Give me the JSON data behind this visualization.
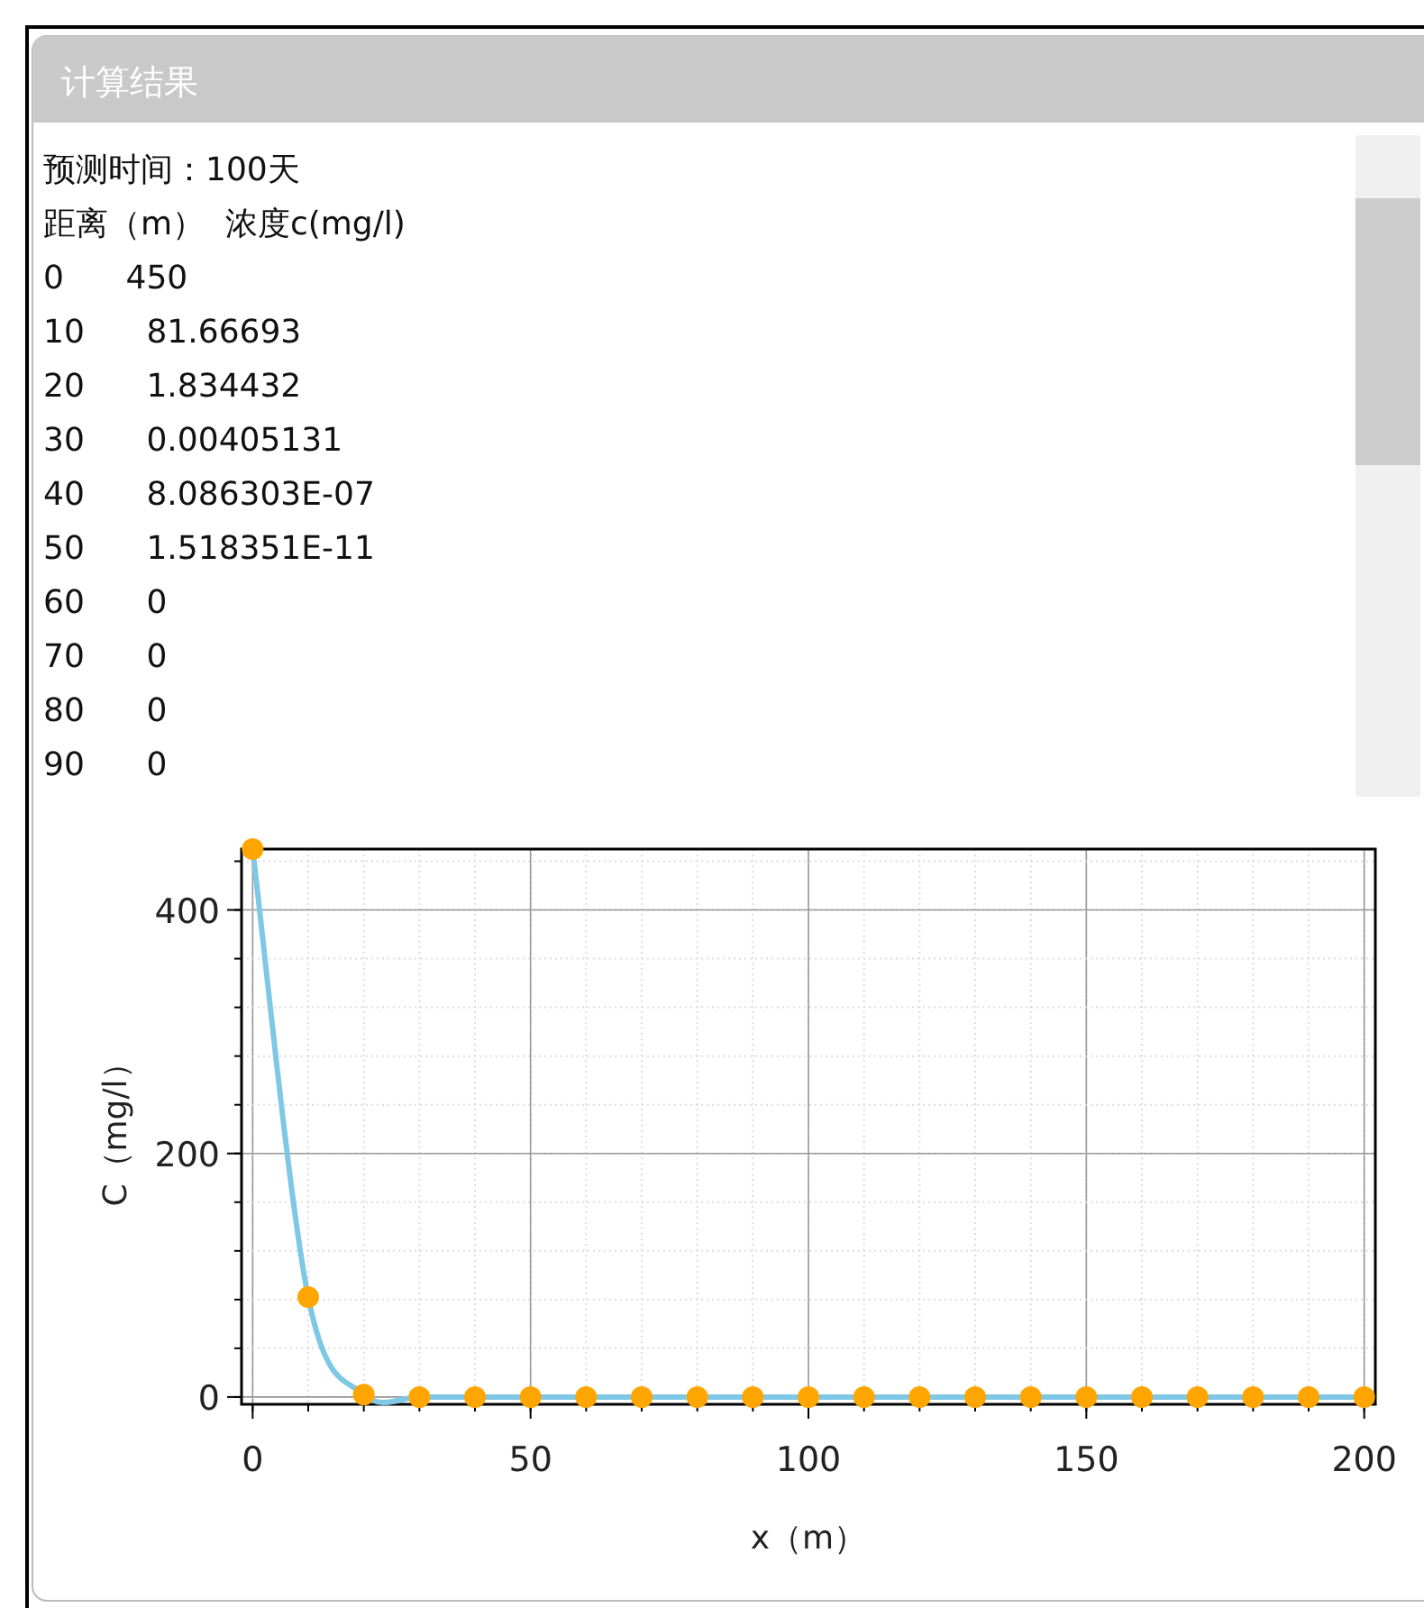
{
  "chart_data": [
    {
      "type": "other",
      "title": "计算结果",
      "annotations": [
        "预测时间：100天",
        "距离（m）  浓度c(mg/l)",
        "0      450",
        "10      81.66693",
        "20      1.834432",
        "30      0.00405131",
        "40      8.086303E-07",
        "50      1.518351E-11",
        "60      0",
        "70      0",
        "80      0",
        "90      0"
      ]
    },
    {
      "type": "line",
      "xlabel": "x（m）",
      "ylabel": "C（mg/l）",
      "x": [
        0,
        10,
        20,
        30,
        40,
        50,
        60,
        70,
        80,
        90,
        100,
        110,
        120,
        130,
        140,
        150,
        160,
        170,
        180,
        190,
        200
      ],
      "series": [
        {
          "color": "#7ec8e6",
          "values": [
            450,
            82,
            2,
            0,
            0,
            0,
            0,
            0,
            0,
            0,
            0,
            0,
            0,
            0,
            0,
            0,
            0,
            0,
            0,
            0,
            0
          ]
        }
      ],
      "xlim": [
        -2,
        202
      ],
      "ylim": [
        -6,
        450
      ],
      "xticks": [
        0,
        50,
        100,
        150,
        200
      ],
      "yticks": [
        0,
        200,
        400
      ],
      "grid": true,
      "marker": "circle",
      "line_style": "solid"
    }
  ]
}
